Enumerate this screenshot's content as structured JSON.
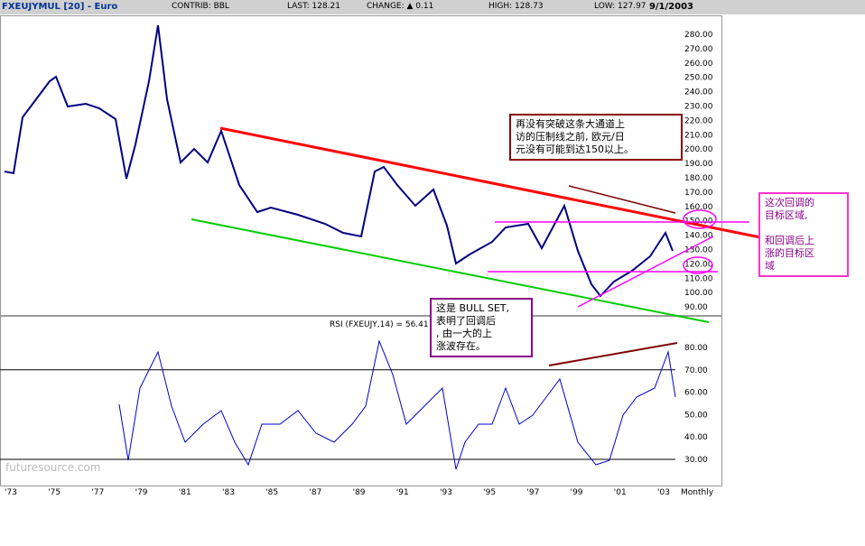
{
  "header": {
    "title": "FXEUJYMUL [20] - Euro",
    "contrib": "CONTRIB: BBL",
    "last": "LAST: 128.21",
    "change": "CHANGE: ▲ 0.11",
    "high": "HIGH: 128.73",
    "low": "LOW: 127.97",
    "date": "9/1/2003"
  },
  "watermark": "futuresource.com",
  "price_axis": [
    "280.00",
    "270.00",
    "260.00",
    "250.00",
    "240.00",
    "230.00",
    "220.00",
    "210.00",
    "200.00",
    "190.00",
    "180.00",
    "170.00",
    "160.00",
    "150.00",
    "140.00",
    "130.00",
    "120.00",
    "110.00",
    "100.00",
    "90.00"
  ],
  "rsi_label": "RSI (FXEUJY,14) = 56.41",
  "rsi_axis": [
    "80.00",
    "70.00",
    "60.00",
    "50.00",
    "40.00",
    "30.00"
  ],
  "x_axis": [
    "'73",
    "'75",
    "'77",
    "'79",
    "'81",
    "'83",
    "'85",
    "'87",
    "'89",
    "'91",
    "'93",
    "'95",
    "'97",
    "'99",
    "'01",
    "'03",
    "Monthly"
  ],
  "callouts": {
    "top": "再没有突破这条大通道上\n访的压制线之前, 欧元/日\n元没有可能到达150以上。",
    "mid": "这是  BULL SET,\n表明了回调后\n, 由一大的上\n涨波存在。",
    "right": "这次回调的\n目标区域,\n\n和回调后上\n涨的目标区\n域"
  },
  "chart_data": {
    "type": "line",
    "note": "approximate monthly series",
    "price_ylim": [
      85,
      290
    ],
    "rsi_ylim": [
      20,
      90
    ]
  },
  "colors": {
    "price": "#000080",
    "resistance": "#ff0000",
    "support": "#00cc00",
    "magenta": "#ff00ff",
    "brown": "#800000",
    "rsi": "#0000cc"
  }
}
